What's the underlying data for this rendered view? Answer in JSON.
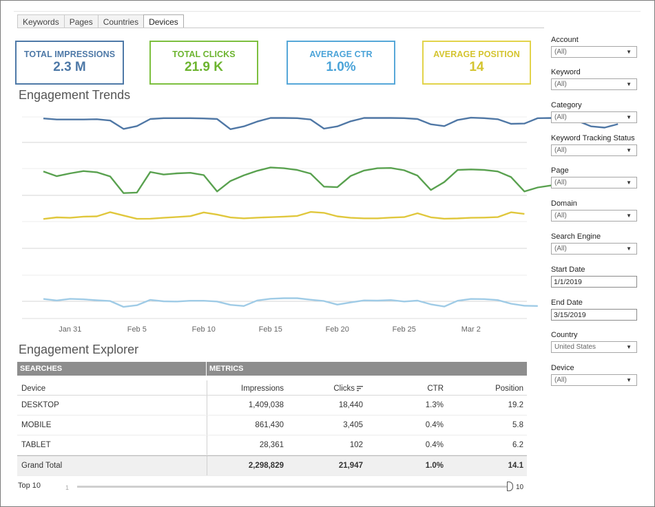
{
  "tabs": [
    "Keywords",
    "Pages",
    "Countries",
    "Devices"
  ],
  "active_tab": "Devices",
  "kpis": [
    {
      "label": "TOTAL IMPRESSIONS",
      "value": "2.3 M",
      "color": "#4e79a7"
    },
    {
      "label": "TOTAL CLICKS",
      "value": "21.9 K",
      "color": "#6cb42f"
    },
    {
      "label": "AVERAGE CTR",
      "value": "1.0%",
      "color": "#4aa3d8"
    },
    {
      "label": "AVERAGE POSITION",
      "value": "14",
      "color": "#d4c42f"
    }
  ],
  "trends_title": "Engagement Trends",
  "chart_data": {
    "type": "line",
    "title": "Engagement Trends",
    "x_tick_labels": [
      "Jan 31",
      "Feb 5",
      "Feb 10",
      "Feb 15",
      "Feb 20",
      "Feb 25",
      "Mar 2"
    ],
    "x_start_day": 29,
    "x_step_days": 1,
    "series": [
      {
        "name": "Impressions",
        "color": "#4f77a5",
        "values": [
          0.06,
          0.1,
          0.1,
          0.1,
          0.09,
          0.14,
          0.47,
          0.36,
          0.08,
          0.05,
          0.05,
          0.05,
          0.06,
          0.08,
          0.48,
          0.37,
          0.18,
          0.04,
          0.04,
          0.05,
          0.1,
          0.46,
          0.37,
          0.17,
          0.04,
          0.04,
          0.04,
          0.05,
          0.08,
          0.29,
          0.36,
          0.12,
          0.03,
          0.05,
          0.09,
          0.27,
          0.26,
          0.05,
          0.04,
          0.06,
          0.16,
          0.37,
          0.42,
          0.28
        ]
      },
      {
        "name": "Clicks",
        "color": "#59a14f",
        "values": [
          0.15,
          0.32,
          0.22,
          0.14,
          0.18,
          0.33,
          0.92,
          0.9,
          0.17,
          0.26,
          0.22,
          0.2,
          0.28,
          0.86,
          0.49,
          0.29,
          0.13,
          0.01,
          0.04,
          0.1,
          0.23,
          0.69,
          0.71,
          0.31,
          0.12,
          0.04,
          0.03,
          0.11,
          0.3,
          0.81,
          0.53,
          0.1,
          0.08,
          0.1,
          0.15,
          0.35,
          0.86,
          0.72,
          0.65
        ]
      },
      {
        "name": "Position",
        "color": "#e0c73c",
        "values": [
          0.75,
          0.6,
          0.64,
          0.53,
          0.5,
          0.09,
          0.42,
          0.74,
          0.73,
          0.64,
          0.56,
          0.48,
          0.12,
          0.33,
          0.61,
          0.69,
          0.63,
          0.58,
          0.53,
          0.46,
          0.07,
          0.16,
          0.5,
          0.64,
          0.69,
          0.69,
          0.62,
          0.57,
          0.2,
          0.59,
          0.73,
          0.7,
          0.64,
          0.62,
          0.57,
          0.11,
          0.26
        ]
      },
      {
        "name": "CTR",
        "color": "#9fcbe6",
        "values": [
          0.1,
          0.24,
          0.09,
          0.13,
          0.22,
          0.29,
          0.82,
          0.67,
          0.18,
          0.31,
          0.33,
          0.26,
          0.26,
          0.33,
          0.64,
          0.74,
          0.24,
          0.08,
          0.03,
          0.03,
          0.17,
          0.29,
          0.61,
          0.41,
          0.23,
          0.25,
          0.2,
          0.33,
          0.25,
          0.59,
          0.79,
          0.26,
          0.1,
          0.11,
          0.2,
          0.53,
          0.71,
          0.74
        ]
      }
    ]
  },
  "explorer_title": "Engagement Explorer",
  "table": {
    "group_headers": [
      "SEARCHES",
      "METRICS"
    ],
    "columns": [
      "Device",
      "Impressions",
      "Clicks",
      "CTR",
      "Position"
    ],
    "rows": [
      {
        "device": "DESKTOP",
        "impressions": "1,409,038",
        "clicks": "18,440",
        "ctr": "1.3%",
        "position": "19.2"
      },
      {
        "device": "MOBILE",
        "impressions": "861,430",
        "clicks": "3,405",
        "ctr": "0.4%",
        "position": "5.8"
      },
      {
        "device": "TABLET",
        "impressions": "28,361",
        "clicks": "102",
        "ctr": "0.4%",
        "position": "6.2"
      }
    ],
    "total": {
      "device": "Grand Total",
      "impressions": "2,298,829",
      "clicks": "21,947",
      "ctr": "1.0%",
      "position": "14.1"
    }
  },
  "slider": {
    "label": "Top 10",
    "min": "1",
    "max": "10",
    "value": 10
  },
  "filters": [
    {
      "label": "Account",
      "value": "(All)",
      "type": "dropdown"
    },
    {
      "label": "Keyword",
      "value": "(All)",
      "type": "dropdown"
    },
    {
      "label": "Category",
      "value": "(All)",
      "type": "dropdown"
    },
    {
      "label": "Keyword Tracking Status",
      "value": "(All)",
      "type": "dropdown"
    },
    {
      "label": "Page",
      "value": "(All)",
      "type": "dropdown"
    },
    {
      "label": "Domain",
      "value": "(All)",
      "type": "dropdown"
    },
    {
      "label": "Search Engine",
      "value": "(All)",
      "type": "dropdown"
    },
    {
      "label": "Start Date",
      "value": "1/1/2019",
      "type": "text"
    },
    {
      "label": "End Date",
      "value": "3/15/2019",
      "type": "text"
    },
    {
      "label": "Country",
      "value": "United States",
      "type": "dropdown"
    },
    {
      "label": "Device",
      "value": "(All)",
      "type": "dropdown"
    }
  ]
}
